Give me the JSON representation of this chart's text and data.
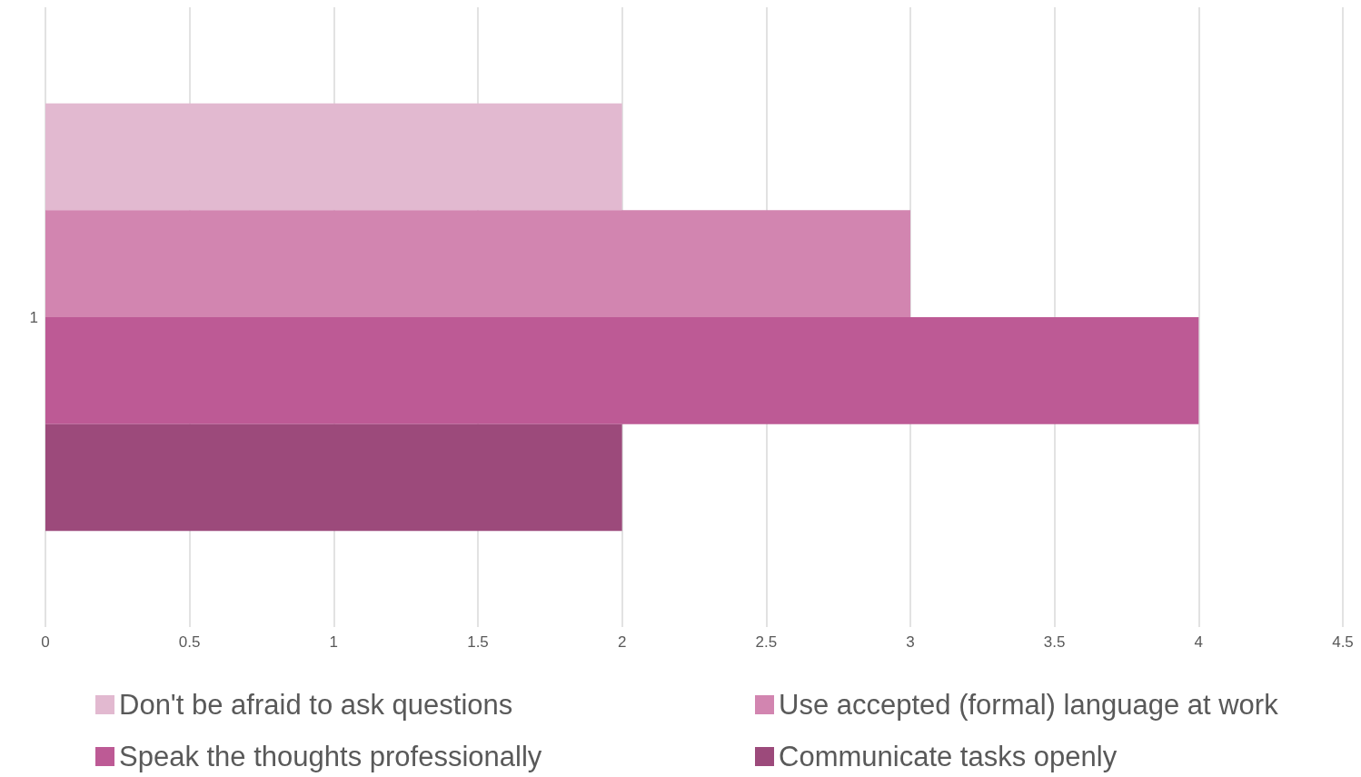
{
  "chart_data": {
    "type": "bar",
    "orientation": "horizontal",
    "categories": [
      "1"
    ],
    "series": [
      {
        "name": "Don't be afraid to ask questions",
        "color": "#e2b9d0",
        "values": [
          2
        ]
      },
      {
        "name": "Use accepted (formal) language at work",
        "color": "#d285b0",
        "values": [
          3
        ]
      },
      {
        "name": "Speak the thoughts professionally",
        "color": "#bd5a95",
        "values": [
          4
        ]
      },
      {
        "name": "Communicate tasks openly",
        "color": "#9c4a7b",
        "values": [
          2
        ]
      }
    ],
    "xlim": [
      0,
      4.5
    ],
    "xticks": [
      0,
      0.5,
      1,
      1.5,
      2,
      2.5,
      3,
      3.5,
      4,
      4.5
    ],
    "grid": "x",
    "legend": "bottom"
  }
}
